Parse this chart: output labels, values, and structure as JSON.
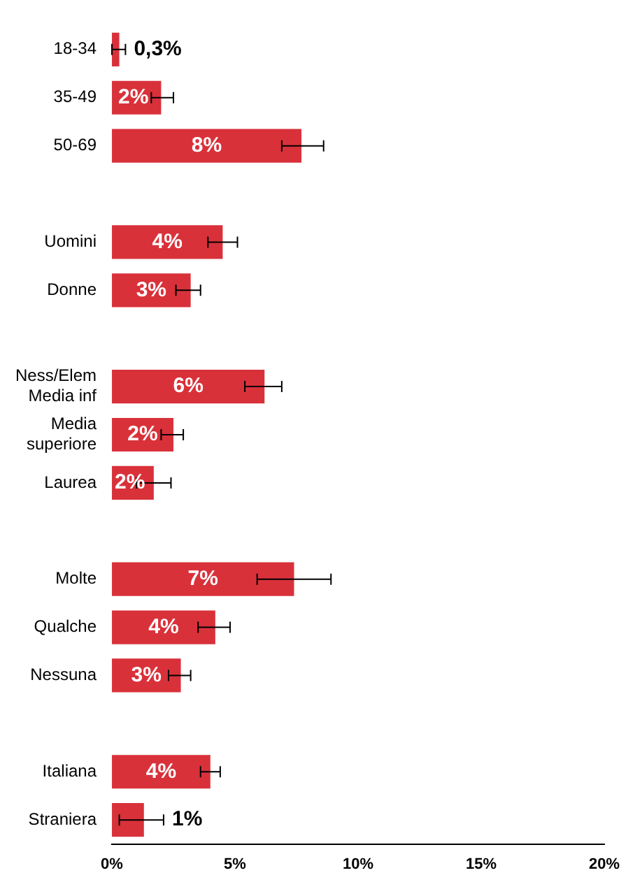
{
  "chart_data": {
    "type": "bar",
    "orientation": "horizontal",
    "categories": [
      "18-34",
      "35-49",
      "50-69",
      null,
      "Uomini",
      "Donne",
      null,
      "Ness/Elem\nMedia inf",
      "Media\nsuperiore",
      "Laurea",
      null,
      "Molte",
      "Qualche",
      "Nessuna",
      null,
      "Italiana",
      "Straniera"
    ],
    "values": [
      0.3,
      2.0,
      7.7,
      null,
      4.5,
      3.2,
      null,
      6.2,
      2.5,
      1.7,
      null,
      7.4,
      4.2,
      2.8,
      null,
      4.0,
      1.3
    ],
    "errors": [
      [
        0.0,
        0.55
      ],
      [
        1.6,
        2.5
      ],
      [
        6.9,
        8.6
      ],
      null,
      [
        3.9,
        5.1
      ],
      [
        2.6,
        3.6
      ],
      null,
      [
        5.4,
        6.9
      ],
      [
        2.0,
        2.9
      ],
      [
        1.0,
        2.4
      ],
      null,
      [
        5.9,
        8.9
      ],
      [
        3.5,
        4.8
      ],
      [
        2.3,
        3.2
      ],
      null,
      [
        3.6,
        4.4
      ],
      [
        0.3,
        2.1
      ]
    ],
    "value_labels": [
      "0,3%",
      "2%",
      "8%",
      null,
      "4%",
      "3%",
      null,
      "6%",
      "2%",
      "2%",
      null,
      "7%",
      "4%",
      "3%",
      null,
      "4%",
      "1%"
    ],
    "color": "#d9313a",
    "xlim": [
      0,
      20
    ],
    "xticks": [
      {
        "value": 0,
        "label": "0%"
      },
      {
        "value": 5,
        "label": "5%"
      },
      {
        "value": 10,
        "label": "10%"
      },
      {
        "value": 15,
        "label": "15%"
      },
      {
        "value": 20,
        "label": "20%"
      }
    ],
    "grid": false,
    "legend": false
  }
}
